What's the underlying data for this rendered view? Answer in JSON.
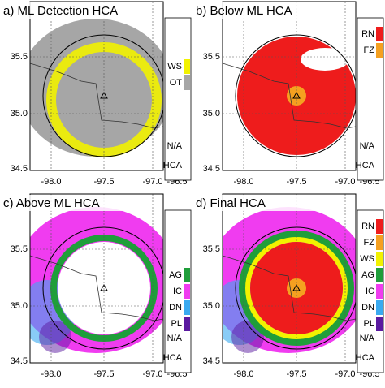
{
  "panels": [
    {
      "title": "a) ML Detection HCA",
      "yticks": [
        "35.5",
        "35.0",
        "34.5"
      ],
      "xticks": [
        "-98.0",
        "-97.5",
        "-97.0",
        "-96.5"
      ],
      "legend": [
        {
          "label": "WS",
          "color": "#f2f200"
        },
        {
          "label": "OT",
          "color": "#a6a6a6"
        }
      ],
      "legend_footer": [
        "N/A",
        "HCA"
      ]
    },
    {
      "title": "b) Below ML HCA",
      "yticks": [
        "35.5",
        "35.0",
        "34.5"
      ],
      "xticks": [
        "-98.0",
        "-97.5",
        "-97.0",
        "-96.5"
      ],
      "legend": [
        {
          "label": "RN",
          "color": "#ee1c1c"
        },
        {
          "label": "FZ",
          "color": "#f5a020"
        }
      ],
      "legend_footer": [
        "N/A",
        "HCA"
      ]
    },
    {
      "title": "c) Above ML HCA",
      "yticks": [
        "35.5",
        "35.0",
        "34.5"
      ],
      "xticks": [
        "-98.0",
        "-97.5",
        "-97.0",
        "-96.5"
      ],
      "legend": [
        {
          "label": "AG",
          "color": "#1f9e3a"
        },
        {
          "label": "IC",
          "color": "#f03cf0"
        },
        {
          "label": "DN",
          "color": "#3aaaf0"
        },
        {
          "label": "PL",
          "color": "#5a1aa0"
        }
      ],
      "legend_footer": [
        "N/A",
        "HCA"
      ]
    },
    {
      "title": "d) Final HCA",
      "yticks": [
        "35.5",
        "35.0",
        "34.5"
      ],
      "xticks": [
        "-98.0",
        "-97.5",
        "-97.0",
        "-96.5"
      ],
      "legend": [
        {
          "label": "RN",
          "color": "#ee1c1c"
        },
        {
          "label": "FZ",
          "color": "#f5a020"
        },
        {
          "label": "WS",
          "color": "#f2f200"
        },
        {
          "label": "AG",
          "color": "#1f9e3a"
        },
        {
          "label": "IC",
          "color": "#f03cf0"
        },
        {
          "label": "DN",
          "color": "#3aaaf0"
        },
        {
          "label": "PL",
          "color": "#5a1aa0"
        }
      ],
      "legend_footer": [
        "N/A",
        "HCA"
      ]
    }
  ]
}
